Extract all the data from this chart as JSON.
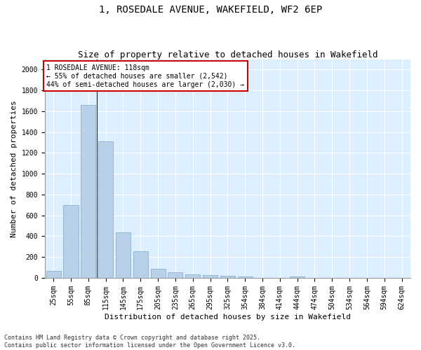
{
  "title": "1, ROSEDALE AVENUE, WAKEFIELD, WF2 6EP",
  "subtitle": "Size of property relative to detached houses in Wakefield",
  "xlabel": "Distribution of detached houses by size in Wakefield",
  "ylabel": "Number of detached properties",
  "categories": [
    "25sqm",
    "55sqm",
    "85sqm",
    "115sqm",
    "145sqm",
    "175sqm",
    "205sqm",
    "235sqm",
    "265sqm",
    "295sqm",
    "325sqm",
    "354sqm",
    "384sqm",
    "414sqm",
    "444sqm",
    "474sqm",
    "504sqm",
    "534sqm",
    "564sqm",
    "594sqm",
    "624sqm"
  ],
  "values": [
    65,
    700,
    1660,
    1310,
    440,
    255,
    90,
    55,
    35,
    25,
    20,
    15,
    0,
    0,
    15,
    0,
    0,
    0,
    0,
    0,
    0
  ],
  "bar_color": "#b8d0e8",
  "bar_edge_color": "#8ab0d0",
  "annotation_text": "1 ROSEDALE AVENUE: 118sqm\n← 55% of detached houses are smaller (2,542)\n44% of semi-detached houses are larger (2,030) →",
  "annotation_box_facecolor": "#ffffff",
  "annotation_box_edgecolor": "#cc0000",
  "ylim": [
    0,
    2100
  ],
  "yticks": [
    0,
    200,
    400,
    600,
    800,
    1000,
    1200,
    1400,
    1600,
    1800,
    2000
  ],
  "plot_bg_color": "#ddeeff",
  "fig_bg_color": "#ffffff",
  "footer_text": "Contains HM Land Registry data © Crown copyright and database right 2025.\nContains public sector information licensed under the Open Government Licence v3.0.",
  "title_fontsize": 10,
  "subtitle_fontsize": 9,
  "tick_fontsize": 7,
  "ylabel_fontsize": 8,
  "xlabel_fontsize": 8,
  "annotation_fontsize": 7,
  "footer_fontsize": 6
}
